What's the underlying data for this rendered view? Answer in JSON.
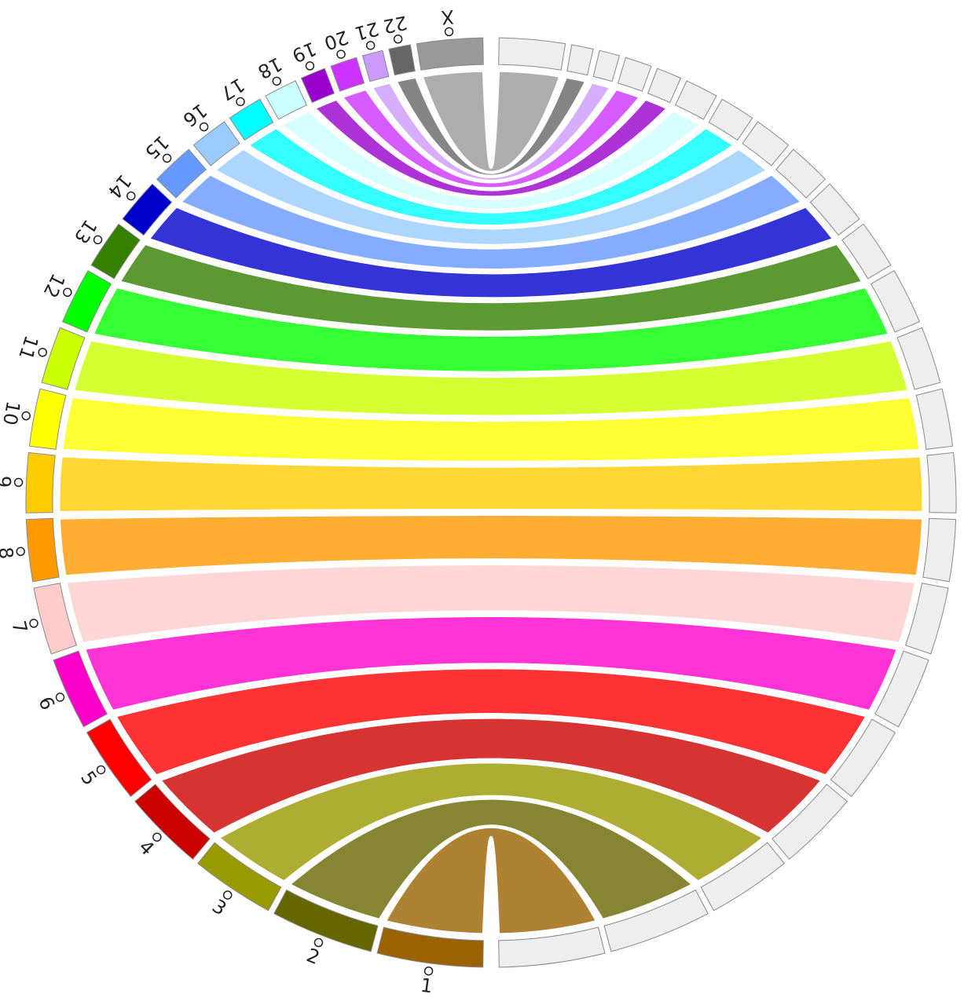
{
  "chart_data": {
    "type": "chord",
    "categories": [
      "1",
      "2",
      "3",
      "4",
      "5",
      "6",
      "7",
      "8",
      "9",
      "10",
      "11",
      "12",
      "13",
      "14",
      "15",
      "16",
      "17",
      "18",
      "19",
      "20",
      "21",
      "22",
      "X"
    ],
    "values": [
      249,
      243,
      198,
      191,
      181,
      171,
      159,
      146,
      141,
      136,
      135,
      133,
      115,
      107,
      102,
      90,
      83,
      78,
      59,
      63,
      48,
      51,
      155
    ],
    "colors": [
      "#9a6200",
      "#666600",
      "#999900",
      "#cc0000",
      "#ff0000",
      "#ff00cc",
      "#ffcccc",
      "#ff9900",
      "#ffcc00",
      "#ffff00",
      "#ccff00",
      "#00ff00",
      "#358000",
      "#0000cc",
      "#6699ff",
      "#99ccff",
      "#00ffff",
      "#ccffff",
      "#9900cc",
      "#cc33ff",
      "#cc99ff",
      "#666666",
      "#999999"
    ]
  }
}
